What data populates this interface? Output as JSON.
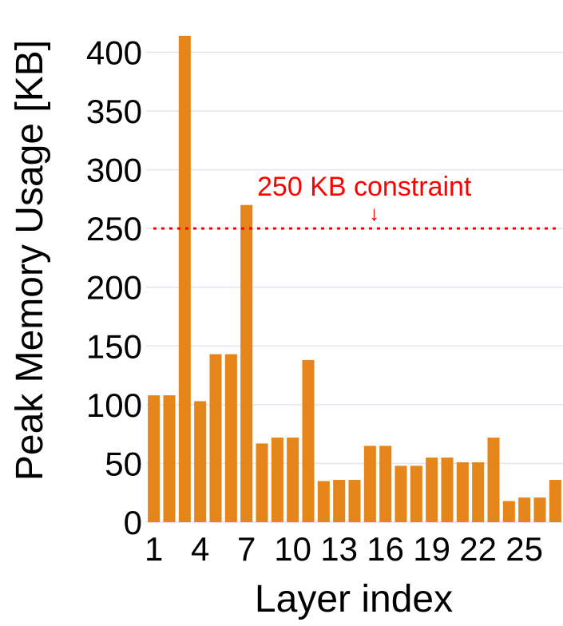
{
  "chart_data": {
    "type": "bar",
    "xlabel": "Layer index",
    "ylabel": "Peak Memory Usage [KB]",
    "categories": [
      1,
      2,
      3,
      4,
      5,
      6,
      7,
      8,
      9,
      10,
      11,
      12,
      13,
      14,
      15,
      16,
      17,
      18,
      19,
      20,
      21,
      22,
      23,
      24,
      25,
      26,
      27
    ],
    "x_tick_labels": [
      "1",
      "4",
      "7",
      "10",
      "13",
      "16",
      "19",
      "22",
      "25"
    ],
    "x_tick_values": [
      1,
      4,
      7,
      10,
      13,
      16,
      19,
      22,
      25
    ],
    "values": [
      108,
      108,
      414,
      103,
      143,
      143,
      270,
      67,
      72,
      72,
      138,
      35,
      36,
      36,
      65,
      65,
      48,
      48,
      55,
      55,
      51,
      51,
      72,
      18,
      21,
      21,
      36
    ],
    "ylim": [
      0,
      420
    ],
    "yticks": [
      0,
      50,
      100,
      150,
      200,
      250,
      300,
      350,
      400
    ],
    "y_tick_labels": [
      "0",
      "50",
      "100",
      "150",
      "200",
      "250",
      "300",
      "350",
      "400"
    ],
    "grid": "horizontal",
    "bar_color": "#E6861A",
    "grid_color": "#E4E4F0",
    "constraint": {
      "value": 250,
      "label": "250 KB constraint",
      "arrow": "↓",
      "color": "#FF0000",
      "style": "dotted"
    }
  }
}
